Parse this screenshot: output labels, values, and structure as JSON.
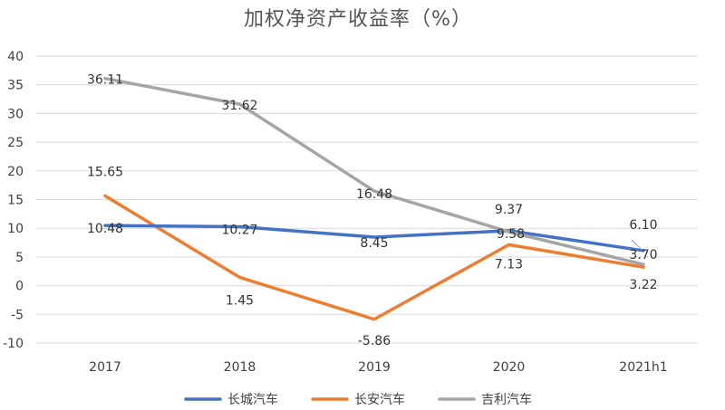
{
  "chart_data": {
    "type": "line",
    "title": "加权净资产收益率（%）",
    "xlabel": "",
    "ylabel": "",
    "categories": [
      "2017",
      "2018",
      "2019",
      "2020",
      "2021h1"
    ],
    "ylim": [
      -10,
      40
    ],
    "yticks": [
      -10,
      -5,
      0,
      5,
      10,
      15,
      20,
      25,
      30,
      35,
      40
    ],
    "grid": true,
    "legend_position": "bottom",
    "series": [
      {
        "name": "长城汽车",
        "color": "#4472C4",
        "values": [
          10.48,
          10.27,
          8.45,
          9.58,
          6.1
        ],
        "labels": [
          "10.48",
          "10.27",
          "8.45",
          "9.58",
          "6.10"
        ]
      },
      {
        "name": "长安汽车",
        "color": "#ED7D31",
        "values": [
          15.65,
          1.45,
          -5.86,
          7.13,
          3.22
        ],
        "labels": [
          "15.65",
          "1.45",
          "-5.86",
          "7.13",
          "3.22"
        ]
      },
      {
        "name": "吉利汽车",
        "color": "#A5A5A5",
        "values": [
          36.11,
          31.62,
          16.48,
          9.37,
          3.7
        ],
        "labels": [
          "36.11",
          "31.62",
          "16.48",
          "9.37",
          "3.70"
        ]
      }
    ]
  }
}
